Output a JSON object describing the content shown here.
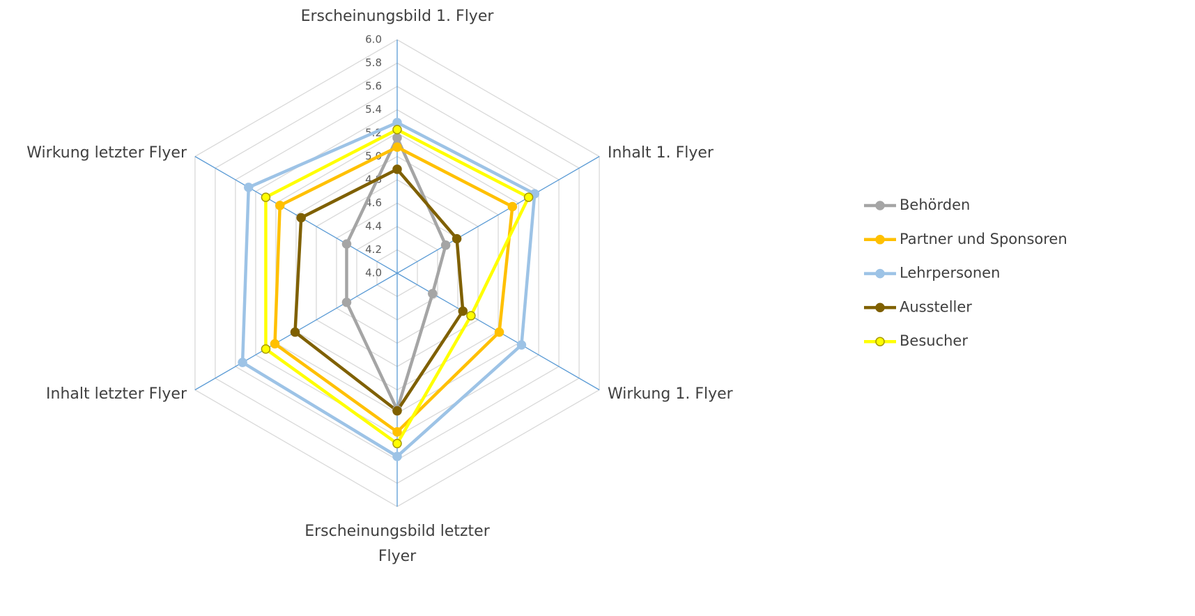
{
  "chart_data": {
    "type": "radar",
    "categories": [
      "Erscheinungsbild 1. Flyer",
      "Inhalt 1. Flyer",
      "Wirkung 1. Flyer",
      "Erscheinungsbild letzter Flyer",
      "Inhalt letzter Flyer",
      "Wirkung letzter Flyer"
    ],
    "series": [
      {
        "name": "Behörden",
        "color": "#a5a5a5",
        "values": [
          5.16,
          4.48,
          4.35,
          5.17,
          4.5,
          4.5
        ]
      },
      {
        "name": "Partner und Sponsoren",
        "color": "#ffc000",
        "values": [
          5.08,
          5.14,
          5.01,
          5.36,
          5.21,
          5.16
        ]
      },
      {
        "name": "Lehrpersonen",
        "color": "#9dc3e6",
        "values": [
          5.29,
          5.36,
          5.23,
          5.57,
          5.53,
          5.47
        ]
      },
      {
        "name": "Aussteller",
        "color": "#7f6000",
        "values": [
          4.89,
          4.59,
          4.65,
          5.18,
          5.01,
          4.95
        ]
      },
      {
        "name": "Besucher",
        "color": "#ffff00",
        "marker_edgecolor": "#a89a00",
        "values": [
          5.23,
          5.3,
          4.73,
          5.46,
          5.3,
          5.3
        ]
      }
    ],
    "ylim": [
      4,
      6
    ],
    "yticks": [
      {
        "value": 4,
        "label": "4.0"
      },
      4.2,
      4.4,
      4.6,
      4.8,
      {
        "value": 5,
        "label": "5.0"
      },
      5.2,
      5.4,
      5.6,
      5.8,
      {
        "value": 6,
        "label": "6.0"
      }
    ],
    "grid": true,
    "legend": "right"
  }
}
